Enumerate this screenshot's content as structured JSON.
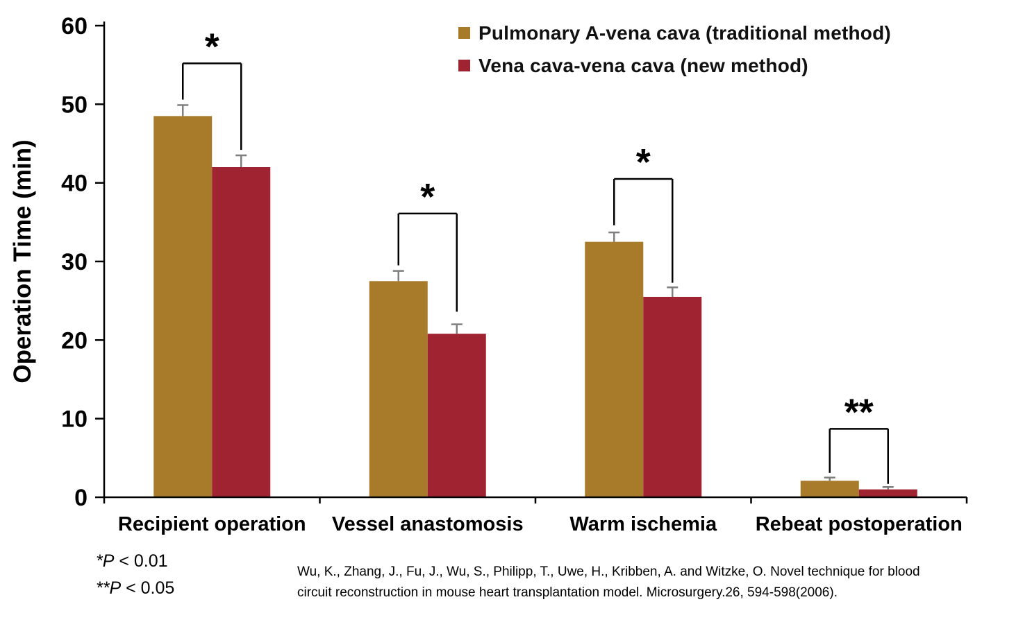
{
  "chart_data": {
    "type": "bar",
    "title": "",
    "xlabel": "",
    "ylabel": "Operation Time (min)",
    "ylim": [
      0,
      60
    ],
    "yticks": [
      0,
      10,
      20,
      30,
      40,
      50,
      60
    ],
    "grid": false,
    "legend_position": "top-center",
    "axis_color": "#000000",
    "error_bar_color": "#7f7f7f",
    "categories": [
      "Recipient operation",
      "Vessel anastomosis",
      "Warm ischemia",
      "Rebeat postoperation"
    ],
    "series": [
      {
        "name": "Pulmonary A-vena cava (traditional method)",
        "color": "#a87b2b",
        "values": [
          48.5,
          27.5,
          32.5,
          2.1
        ],
        "errors": [
          1.4,
          1.3,
          1.2,
          0.4
        ]
      },
      {
        "name": "Vena cava-vena cava (new method)",
        "color": "#a02331",
        "values": [
          42.0,
          20.8,
          25.5,
          1.0
        ],
        "errors": [
          1.5,
          1.2,
          1.2,
          0.3
        ]
      }
    ],
    "significance": [
      {
        "label": "*",
        "bracket_top": 55.2,
        "left_leg_bottom": 50.6,
        "right_leg_bottom": 44.2
      },
      {
        "label": "*",
        "bracket_top": 36.1,
        "left_leg_bottom": 29.5,
        "right_leg_bottom": 23.6
      },
      {
        "label": "*",
        "bracket_top": 40.5,
        "left_leg_bottom": 34.6,
        "right_leg_bottom": 27.3
      },
      {
        "label": "**",
        "bracket_top": 8.7,
        "left_leg_bottom": 3.1,
        "right_leg_bottom": 1.7
      }
    ]
  },
  "footnotes": [
    {
      "symbol": "*P",
      "text": " < 0.01"
    },
    {
      "symbol": "**P",
      "text": " < 0.05"
    }
  ],
  "citation": {
    "lines": [
      "Wu, K., Zhang, J., Fu, J., Wu, S., Philipp, T., Uwe, H., Kribben, A. and Witzke, O. Novel technique for blood",
      "circuit reconstruction in mouse heart transplantation model. Microsurgery.26, 594-598(2006)."
    ]
  }
}
